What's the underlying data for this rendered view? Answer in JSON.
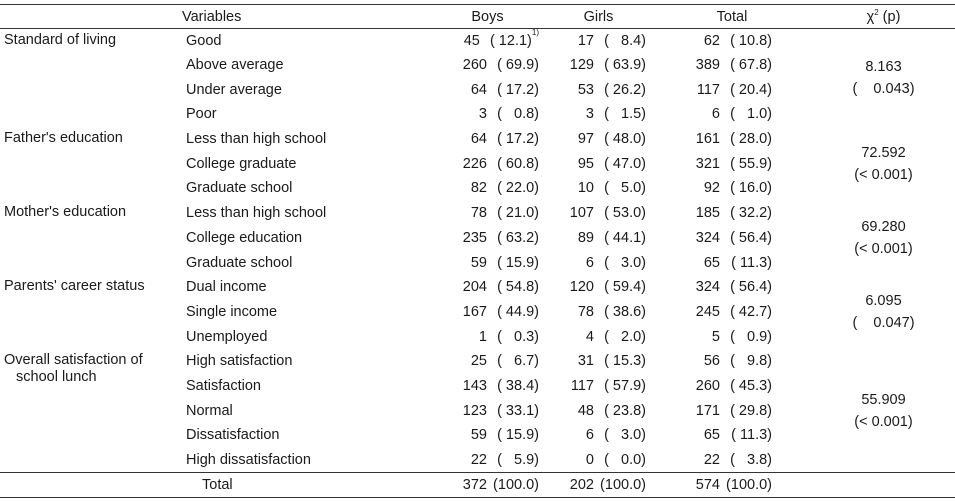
{
  "header": {
    "variables": "Variables",
    "boys": "Boys",
    "girls": "Girls",
    "total": "Total",
    "chi": "χ",
    "chi_sup": "2",
    "chi_p": " (p)"
  },
  "footnote_mark": "1)",
  "groups": [
    {
      "name": "Standard of living",
      "name_line2": "",
      "chi_value": "8.163",
      "p_value": "(    0.043)",
      "rows": [
        {
          "cat": "Good",
          "boys_n": "45",
          "boys_p": "( 12.1)",
          "girls_n": "17",
          "girls_p": "(   8.4)",
          "total_n": "62",
          "total_p": "( 10.8)"
        },
        {
          "cat": "Above average",
          "boys_n": "260",
          "boys_p": "( 69.9)",
          "girls_n": "129",
          "girls_p": "( 63.9)",
          "total_n": "389",
          "total_p": "( 67.8)"
        },
        {
          "cat": "Under average",
          "boys_n": "64",
          "boys_p": "( 17.2)",
          "girls_n": "53",
          "girls_p": "( 26.2)",
          "total_n": "117",
          "total_p": "( 20.4)"
        },
        {
          "cat": "Poor",
          "boys_n": "3",
          "boys_p": "(   0.8)",
          "girls_n": "3",
          "girls_p": "(   1.5)",
          "total_n": "6",
          "total_p": "(   1.0)"
        }
      ]
    },
    {
      "name": "Father's education",
      "name_line2": "",
      "chi_value": "72.592",
      "p_value": "(< 0.001)",
      "rows": [
        {
          "cat": "Less than high school",
          "boys_n": "64",
          "boys_p": "( 17.2)",
          "girls_n": "97",
          "girls_p": "( 48.0)",
          "total_n": "161",
          "total_p": "( 28.0)"
        },
        {
          "cat": "College graduate",
          "boys_n": "226",
          "boys_p": "( 60.8)",
          "girls_n": "95",
          "girls_p": "( 47.0)",
          "total_n": "321",
          "total_p": "( 55.9)"
        },
        {
          "cat": "Graduate school",
          "boys_n": "82",
          "boys_p": "( 22.0)",
          "girls_n": "10",
          "girls_p": "(   5.0)",
          "total_n": "92",
          "total_p": "( 16.0)"
        }
      ]
    },
    {
      "name": "Mother's education",
      "name_line2": "",
      "chi_value": "69.280",
      "p_value": "(< 0.001)",
      "rows": [
        {
          "cat": "Less than high school",
          "boys_n": "78",
          "boys_p": "( 21.0)",
          "girls_n": "107",
          "girls_p": "( 53.0)",
          "total_n": "185",
          "total_p": "( 32.2)"
        },
        {
          "cat": "College education",
          "boys_n": "235",
          "boys_p": "( 63.2)",
          "girls_n": "89",
          "girls_p": "( 44.1)",
          "total_n": "324",
          "total_p": "( 56.4)"
        },
        {
          "cat": "Graduate school",
          "boys_n": "59",
          "boys_p": "( 15.9)",
          "girls_n": "6",
          "girls_p": "(   3.0)",
          "total_n": "65",
          "total_p": "( 11.3)"
        }
      ]
    },
    {
      "name": "Parents' career status",
      "name_line2": "",
      "chi_value": "6.095",
      "p_value": "(    0.047)",
      "rows": [
        {
          "cat": "Dual income",
          "boys_n": "204",
          "boys_p": "( 54.8)",
          "girls_n": "120",
          "girls_p": "( 59.4)",
          "total_n": "324",
          "total_p": "( 56.4)"
        },
        {
          "cat": "Single income",
          "boys_n": "167",
          "boys_p": "( 44.9)",
          "girls_n": "78",
          "girls_p": "( 38.6)",
          "total_n": "245",
          "total_p": "( 42.7)"
        },
        {
          "cat": "Unemployed",
          "boys_n": "1",
          "boys_p": "(   0.3)",
          "girls_n": "4",
          "girls_p": "(   2.0)",
          "total_n": "5",
          "total_p": "(   0.9)"
        }
      ]
    },
    {
      "name": "Overall satisfaction of",
      "name_line2": "school lunch",
      "chi_value": "55.909",
      "p_value": "(< 0.001)",
      "rows": [
        {
          "cat": "High satisfaction",
          "boys_n": "25",
          "boys_p": "(   6.7)",
          "girls_n": "31",
          "girls_p": "( 15.3)",
          "total_n": "56",
          "total_p": "(   9.8)"
        },
        {
          "cat": "Satisfaction",
          "boys_n": "143",
          "boys_p": "( 38.4)",
          "girls_n": "117",
          "girls_p": "( 57.9)",
          "total_n": "260",
          "total_p": "( 45.3)"
        },
        {
          "cat": "Normal",
          "boys_n": "123",
          "boys_p": "( 33.1)",
          "girls_n": "48",
          "girls_p": "( 23.8)",
          "total_n": "171",
          "total_p": "( 29.8)"
        },
        {
          "cat": "Dissatisfaction",
          "boys_n": "59",
          "boys_p": "( 15.9)",
          "girls_n": "6",
          "girls_p": "(   3.0)",
          "total_n": "65",
          "total_p": "( 11.3)"
        },
        {
          "cat": "High dissatisfaction",
          "boys_n": "22",
          "boys_p": "(   5.9)",
          "girls_n": "0",
          "girls_p": "(   0.0)",
          "total_n": "22",
          "total_p": "(   3.8)"
        }
      ]
    }
  ],
  "total_row": {
    "cat": "Total",
    "boys_n": "372",
    "boys_p": "(100.0)",
    "girls_n": "202",
    "girls_p": "(100.0)",
    "total_n": "574",
    "total_p": "(100.0)"
  }
}
